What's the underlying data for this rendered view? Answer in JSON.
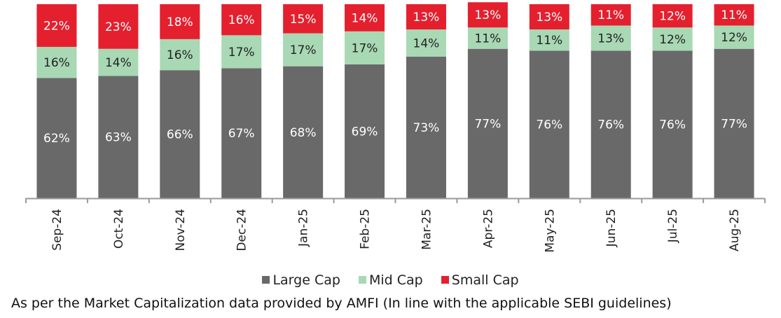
{
  "chart_data": {
    "type": "bar",
    "stacked": true,
    "categories": [
      "Sep-24",
      "Oct-24",
      "Nov-24",
      "Dec-24",
      "Jan-25",
      "Feb-25",
      "Mar-25",
      "Apr-25",
      "May-25",
      "Jun-25",
      "Jul-25",
      "Aug-25"
    ],
    "series": [
      {
        "name": "Large Cap",
        "color": "#696969",
        "values": [
          62,
          63,
          66,
          67,
          68,
          69,
          73,
          77,
          76,
          76,
          76,
          77
        ]
      },
      {
        "name": "Mid Cap",
        "color": "#a8d8b4",
        "values": [
          16,
          14,
          16,
          17,
          17,
          17,
          14,
          11,
          11,
          13,
          12,
          12
        ]
      },
      {
        "name": "Small Cap",
        "color": "#e4202e",
        "values": [
          22,
          23,
          18,
          16,
          15,
          14,
          13,
          13,
          13,
          11,
          12,
          11
        ]
      }
    ],
    "value_suffix": "%",
    "ylim": [
      0,
      100
    ],
    "grid": false,
    "legend": "bottom"
  },
  "footnote": "As per the Market Capitalization data provided by AMFI (In line with the applicable SEBI guidelines)"
}
